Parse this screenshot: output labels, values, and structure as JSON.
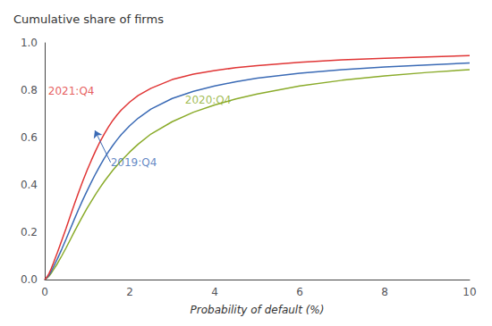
{
  "chart_data": {
    "type": "line",
    "title": "Cumulative share of firms",
    "xlabel": "Probability of default (%)",
    "xlim": [
      0,
      10
    ],
    "ylim": [
      0,
      1
    ],
    "xticks": [
      0,
      2,
      4,
      6,
      8,
      10
    ],
    "yticks": [
      {
        "value": 0,
        "label": "0.0"
      },
      {
        "value": 0.2,
        "label": "0.2"
      },
      {
        "value": 0.4,
        "label": "0.4"
      },
      {
        "value": 0.6,
        "label": "0.6"
      },
      {
        "value": 0.8,
        "label": "0.8"
      },
      {
        "value": 1,
        "label": "1.0"
      }
    ],
    "grid": false,
    "x": [
      0,
      0.05,
      0.1,
      0.15,
      0.2,
      0.3,
      0.4,
      0.5,
      0.6,
      0.7,
      0.8,
      0.9,
      1.0,
      1.1,
      1.2,
      1.3,
      1.4,
      1.5,
      1.6,
      1.7,
      1.8,
      2.0,
      2.2,
      2.5,
      3.0,
      3.5,
      4.0,
      4.5,
      5.0,
      6.0,
      7.0,
      8.0,
      9.0,
      10.0
    ],
    "series": [
      {
        "name": "2020:Q4",
        "color": "#8aab2a",
        "values": [
          0.0,
          0.006,
          0.014,
          0.026,
          0.04,
          0.068,
          0.1,
          0.133,
          0.168,
          0.203,
          0.237,
          0.27,
          0.302,
          0.332,
          0.361,
          0.388,
          0.414,
          0.438,
          0.461,
          0.482,
          0.502,
          0.539,
          0.572,
          0.615,
          0.667,
          0.707,
          0.738,
          0.763,
          0.784,
          0.818,
          0.842,
          0.86,
          0.875,
          0.887
        ]
      },
      {
        "name": "2019:Q4",
        "color": "#3a6ab5",
        "values": [
          0.0,
          0.008,
          0.018,
          0.033,
          0.052,
          0.088,
          0.128,
          0.17,
          0.213,
          0.256,
          0.298,
          0.338,
          0.376,
          0.413,
          0.448,
          0.481,
          0.512,
          0.54,
          0.566,
          0.59,
          0.612,
          0.65,
          0.682,
          0.72,
          0.765,
          0.795,
          0.818,
          0.836,
          0.851,
          0.872,
          0.887,
          0.898,
          0.907,
          0.915
        ]
      },
      {
        "name": "2021:Q4",
        "color": "#e03535",
        "values": [
          0.0,
          0.01,
          0.025,
          0.045,
          0.068,
          0.115,
          0.165,
          0.215,
          0.268,
          0.32,
          0.37,
          0.418,
          0.463,
          0.505,
          0.545,
          0.582,
          0.615,
          0.645,
          0.672,
          0.695,
          0.716,
          0.75,
          0.778,
          0.808,
          0.845,
          0.868,
          0.883,
          0.895,
          0.904,
          0.918,
          0.928,
          0.935,
          0.941,
          0.946
        ]
      }
    ],
    "annotations": [
      {
        "text": "2021:Q4",
        "x": 0.08,
        "y": 0.795,
        "color": "#e03535"
      },
      {
        "text": "2020:Q4",
        "x": 3.3,
        "y": 0.76,
        "color": "#8aab2a"
      },
      {
        "text": "2019:Q4",
        "x": 1.55,
        "y": 0.495,
        "color": "#3a6ab5",
        "arrow_x": 1.18,
        "arrow_y": 0.63
      }
    ]
  }
}
